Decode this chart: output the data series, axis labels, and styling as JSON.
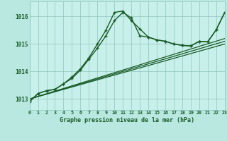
{
  "title": "Graphe pression niveau de la mer (hPa)",
  "bg_color": "#b8e8e0",
  "plot_bg_color": "#c8f0ea",
  "line_color": "#1a5c28",
  "grid_color": "#90c4be",
  "text_color": "#1a5c28",
  "xmin": 0,
  "xmax": 23,
  "ymin": 1012.6,
  "ymax": 1016.55,
  "yticks": [
    1013,
    1014,
    1015,
    1016
  ],
  "xticks": [
    0,
    1,
    2,
    3,
    4,
    5,
    6,
    7,
    8,
    9,
    10,
    11,
    12,
    13,
    14,
    15,
    16,
    17,
    18,
    19,
    20,
    21,
    22,
    23
  ],
  "series": [
    {
      "x": [
        0,
        1,
        2,
        3,
        4,
        5,
        6,
        7,
        8,
        9,
        10,
        11,
        12,
        13,
        14,
        15,
        16,
        17,
        18,
        19,
        20,
        21,
        22,
        23
      ],
      "y": [
        1012.9,
        1013.2,
        1013.3,
        1013.35,
        1013.55,
        1013.75,
        1014.05,
        1014.45,
        1014.85,
        1015.3,
        1015.85,
        1016.15,
        1015.95,
        1015.3,
        1015.25,
        1015.15,
        1015.1,
        1015.0,
        1014.95,
        1014.93,
        1015.1,
        1015.08,
        1015.52,
        1016.15
      ],
      "marker": "+",
      "lw": 1.0
    },
    {
      "x": [
        0,
        1,
        2,
        3,
        4,
        5,
        6,
        7,
        8,
        9,
        10,
        11,
        12,
        13,
        14,
        15,
        16,
        17,
        18,
        19,
        20,
        21,
        22,
        23
      ],
      "y": [
        1012.9,
        1013.2,
        1013.3,
        1013.35,
        1013.55,
        1013.8,
        1014.1,
        1014.5,
        1015.0,
        1015.5,
        1016.15,
        1016.2,
        1015.85,
        1015.55,
        1015.25,
        1015.15,
        1015.1,
        1015.0,
        1014.95,
        1014.93,
        1015.1,
        1015.08,
        1015.52,
        1016.15
      ],
      "marker": "+",
      "lw": 1.0
    },
    {
      "x": [
        0,
        23
      ],
      "y": [
        1013.0,
        1015.0
      ],
      "marker": "",
      "lw": 0.9
    },
    {
      "x": [
        0,
        23
      ],
      "y": [
        1013.0,
        1015.1
      ],
      "marker": "",
      "lw": 0.9
    },
    {
      "x": [
        0,
        23
      ],
      "y": [
        1013.0,
        1015.2
      ],
      "marker": "",
      "lw": 0.9
    }
  ]
}
